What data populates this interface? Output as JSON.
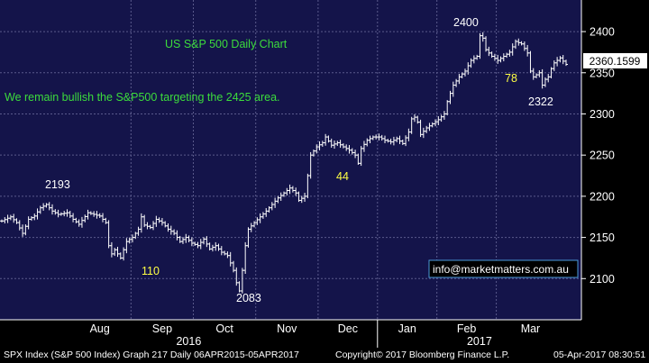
{
  "footer": {
    "left": "SPX Index (S&P 500 Index) Graph 217  Daily 06APR2015-05APR2017",
    "center": "Copyright© 2017 Bloomberg Finance L.P.",
    "right": "05-Apr-2017 08:30:51"
  },
  "colors": {
    "plot_bg": "#14144a",
    "grid": "#5a5a8c",
    "bars": "#ffffff",
    "title_text": "#3cdc3c",
    "annotation_text": "#ffff44",
    "price_box_bg": "#ffffff",
    "price_box_text": "#000000"
  },
  "chart_data": {
    "type": "ohlc",
    "title": "US S&P 500 Daily Chart",
    "commentary": "We remain bullish the S&P500 targeting the 2425 area.",
    "watermark": "info@marketmatters.com.au",
    "ylim": [
      2050,
      2440
    ],
    "y_ticks": [
      2100,
      2150,
      2200,
      2250,
      2300,
      2350,
      2400
    ],
    "months": [
      "Aug",
      "Sep",
      "Oct",
      "Nov",
      "Dec",
      "Jan",
      "Feb",
      "Mar"
    ],
    "years": [
      "2016",
      "2017"
    ],
    "last_price": "2360.1599",
    "last_value": 2360.16,
    "price_labels": [
      {
        "text": "2193",
        "value": 2193
      },
      {
        "text": "2083",
        "value": 2083
      },
      {
        "text": "2400",
        "value": 2400
      },
      {
        "text": "2322",
        "value": 2322
      }
    ],
    "count_labels": [
      "110",
      "44",
      "78"
    ],
    "anchors": [
      [
        0,
        2170
      ],
      [
        3,
        2175
      ],
      [
        5,
        2168
      ],
      [
        7,
        2155
      ],
      [
        9,
        2172
      ],
      [
        11,
        2176
      ],
      [
        13,
        2186
      ],
      [
        15,
        2190
      ],
      [
        17,
        2182
      ],
      [
        19,
        2178
      ],
      [
        22,
        2180
      ],
      [
        24,
        2172
      ],
      [
        26,
        2166
      ],
      [
        29,
        2180
      ],
      [
        31,
        2178
      ],
      [
        33,
        2176
      ],
      [
        35,
        2168
      ],
      [
        36,
        2140
      ],
      [
        37,
        2130
      ],
      [
        38,
        2135
      ],
      [
        40,
        2125
      ],
      [
        42,
        2145
      ],
      [
        44,
        2150
      ],
      [
        46,
        2160
      ],
      [
        47,
        2175
      ],
      [
        48,
        2165
      ],
      [
        50,
        2162
      ],
      [
        52,
        2172
      ],
      [
        54,
        2168
      ],
      [
        56,
        2160
      ],
      [
        58,
        2155
      ],
      [
        60,
        2145
      ],
      [
        62,
        2150
      ],
      [
        64,
        2143
      ],
      [
        66,
        2140
      ],
      [
        68,
        2148
      ],
      [
        70,
        2136
      ],
      [
        72,
        2140
      ],
      [
        74,
        2132
      ],
      [
        76,
        2128
      ],
      [
        78,
        2110
      ],
      [
        79,
        2095
      ],
      [
        80,
        2085
      ],
      [
        81,
        2110
      ],
      [
        82,
        2140
      ],
      [
        83,
        2160
      ],
      [
        85,
        2168
      ],
      [
        87,
        2175
      ],
      [
        89,
        2182
      ],
      [
        91,
        2190
      ],
      [
        93,
        2198
      ],
      [
        95,
        2204
      ],
      [
        97,
        2210
      ],
      [
        99,
        2204
      ],
      [
        100,
        2195
      ],
      [
        102,
        2200
      ],
      [
        103,
        2225
      ],
      [
        104,
        2250
      ],
      [
        106,
        2260
      ],
      [
        108,
        2265
      ],
      [
        109,
        2272
      ],
      [
        111,
        2262
      ],
      [
        113,
        2265
      ],
      [
        115,
        2260
      ],
      [
        117,
        2256
      ],
      [
        119,
        2250
      ],
      [
        120,
        2240
      ],
      [
        121,
        2258
      ],
      [
        123,
        2268
      ],
      [
        125,
        2272
      ],
      [
        127,
        2272
      ],
      [
        129,
        2268
      ],
      [
        131,
        2266
      ],
      [
        133,
        2270
      ],
      [
        135,
        2264
      ],
      [
        137,
        2278
      ],
      [
        138,
        2294
      ],
      [
        139,
        2296
      ],
      [
        140,
        2290
      ],
      [
        141,
        2275
      ],
      [
        143,
        2283
      ],
      [
        145,
        2288
      ],
      [
        147,
        2293
      ],
      [
        149,
        2300
      ],
      [
        150,
        2315
      ],
      [
        152,
        2335
      ],
      [
        154,
        2345
      ],
      [
        156,
        2352
      ],
      [
        158,
        2365
      ],
      [
        160,
        2370
      ],
      [
        161,
        2395
      ],
      [
        162,
        2392
      ],
      [
        163,
        2378
      ],
      [
        165,
        2370
      ],
      [
        167,
        2365
      ],
      [
        169,
        2370
      ],
      [
        171,
        2375
      ],
      [
        173,
        2388
      ],
      [
        175,
        2385
      ],
      [
        177,
        2374
      ],
      [
        178,
        2352
      ],
      [
        179,
        2345
      ],
      [
        181,
        2350
      ],
      [
        182,
        2335
      ],
      [
        183,
        2342
      ],
      [
        184,
        2345
      ],
      [
        185,
        2355
      ],
      [
        186,
        2362
      ],
      [
        188,
        2368
      ],
      [
        190,
        2360.16
      ]
    ]
  }
}
